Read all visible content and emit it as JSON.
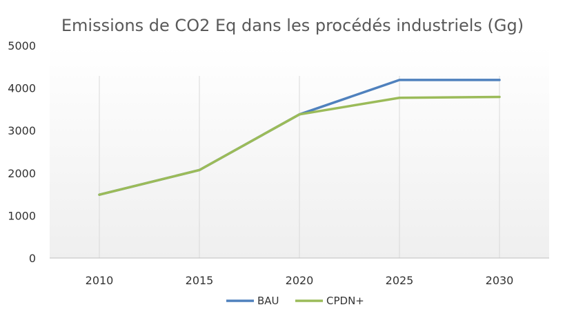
{
  "chart_data": {
    "type": "line",
    "title": "Emissions de CO2 Eq dans les procédés industriels (Gg)",
    "xlabel": "",
    "ylabel": "",
    "categories": [
      "2010",
      "2015",
      "2020",
      "2025",
      "2030"
    ],
    "ylim": [
      0,
      5000
    ],
    "yticks": [
      0,
      1000,
      2000,
      3000,
      4000,
      5000
    ],
    "grid": "vertical",
    "legend": "bottom",
    "series": [
      {
        "name": "BAU",
        "color": "#4f81bd",
        "values": [
          1490,
          2070,
          3380,
          4190,
          4190
        ]
      },
      {
        "name": "CPDN+",
        "color": "#9bbb59",
        "values": [
          1490,
          2070,
          3380,
          3770,
          3790
        ]
      }
    ]
  }
}
